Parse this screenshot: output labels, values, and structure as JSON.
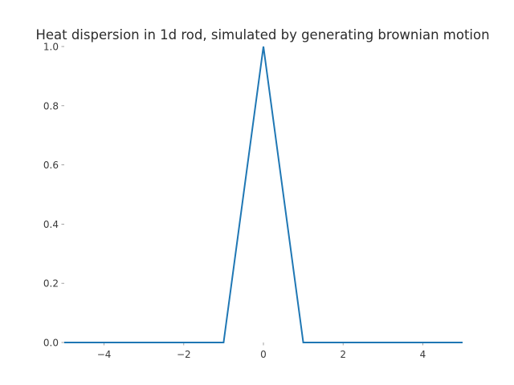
{
  "chart_data": {
    "type": "line",
    "title": "Heat dispersion in 1d rod, simulated by generating brownian motion",
    "xlabel": "",
    "ylabel": "",
    "xlim": [
      -5,
      5
    ],
    "ylim": [
      0,
      1
    ],
    "grid": false,
    "x_ticks": [
      -4,
      -2,
      0,
      2,
      4
    ],
    "x_tick_labels": [
      "−4",
      "−2",
      "0",
      "2",
      "4"
    ],
    "y_ticks": [
      0.0,
      0.2,
      0.4,
      0.6,
      0.8,
      1.0
    ],
    "y_tick_labels": [
      "0.0",
      "0.2",
      "0.4",
      "0.6",
      "0.8",
      "1.0"
    ],
    "series": [
      {
        "color": "#1f77b4",
        "x": [
          -5,
          -4,
          -3,
          -2,
          -1,
          0,
          1,
          2,
          3,
          4,
          5
        ],
        "y": [
          0,
          0,
          0,
          0,
          0,
          1,
          0,
          0,
          0,
          0,
          0
        ]
      }
    ]
  }
}
